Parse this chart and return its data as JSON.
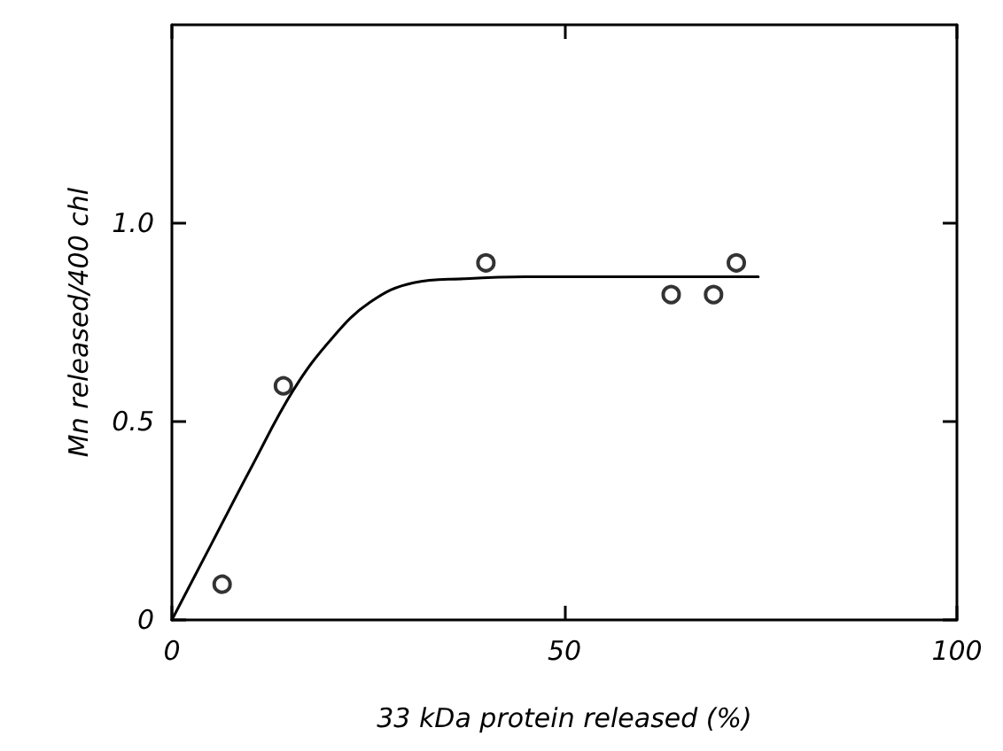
{
  "chart_data": {
    "type": "scatter",
    "xlabel": "33 kDa protein released (%)",
    "ylabel": "Mn released/400 chl",
    "xlim": [
      0,
      100
    ],
    "xticks": [
      0,
      50,
      100
    ],
    "ylim": [
      0,
      1.5
    ],
    "yticks": [
      0,
      {
        "value": 0.5,
        "label": "0.5"
      },
      {
        "value": 1,
        "label": "1.0"
      }
    ],
    "grid": false,
    "series": [
      {
        "color": "#000000",
        "marker": "circle",
        "x": [
          6.4,
          14.2,
          40,
          63.6,
          69,
          71.9
        ],
        "values": [
          0.09,
          0.59,
          0.9,
          0.82,
          0.82,
          0.9
        ]
      },
      {
        "type": "line",
        "color": "#000000",
        "marker": "none",
        "line_style": "solid",
        "x": [
          0,
          5,
          10,
          15.5,
          20.4,
          25.2,
          30.8,
          37.2,
          45,
          60,
          74.7
        ],
        "values": [
          0,
          0.19,
          0.38,
          0.58,
          0.71,
          0.8,
          0.85,
          0.86,
          0.865,
          0.865,
          0.865
        ]
      }
    ]
  }
}
